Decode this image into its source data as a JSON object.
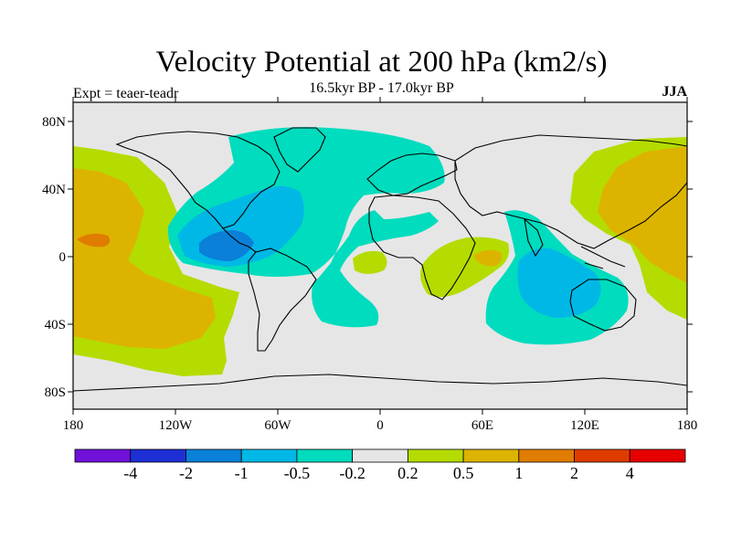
{
  "title": "Velocity Potential at 200 hPa (km2/s)",
  "subtitle": "16.5kyr BP - 17.0kyr BP",
  "left_label": "Expt = teaer-teadr",
  "right_label": "JJA",
  "axes": {
    "lat_ticks": [
      "80N",
      "40N",
      "0",
      "40S",
      "80S"
    ],
    "lon_ticks": [
      "180",
      "120W",
      "60W",
      "0",
      "60E",
      "120E",
      "180"
    ]
  },
  "colorbar": {
    "colors": [
      "#7010d8",
      "#1e2fd6",
      "#0a80d8",
      "#00b8e6",
      "#00dcbe",
      "#e6e6e6",
      "#b4dc00",
      "#dcb400",
      "#e07c00",
      "#e03c00",
      "#e60000"
    ],
    "labels": [
      "-4",
      "-2",
      "-1",
      "-0.5",
      "-0.2",
      "0.2",
      "0.5",
      "1",
      "2",
      "4"
    ]
  },
  "colors": {
    "neutral": "#e6e6e6",
    "pos_1": "#b4dc00",
    "pos_2": "#dcb400",
    "pos_3": "#e07c00",
    "neg_1": "#00dcbe",
    "neg_2": "#00b8e6",
    "neg_3": "#0a80d8"
  }
}
